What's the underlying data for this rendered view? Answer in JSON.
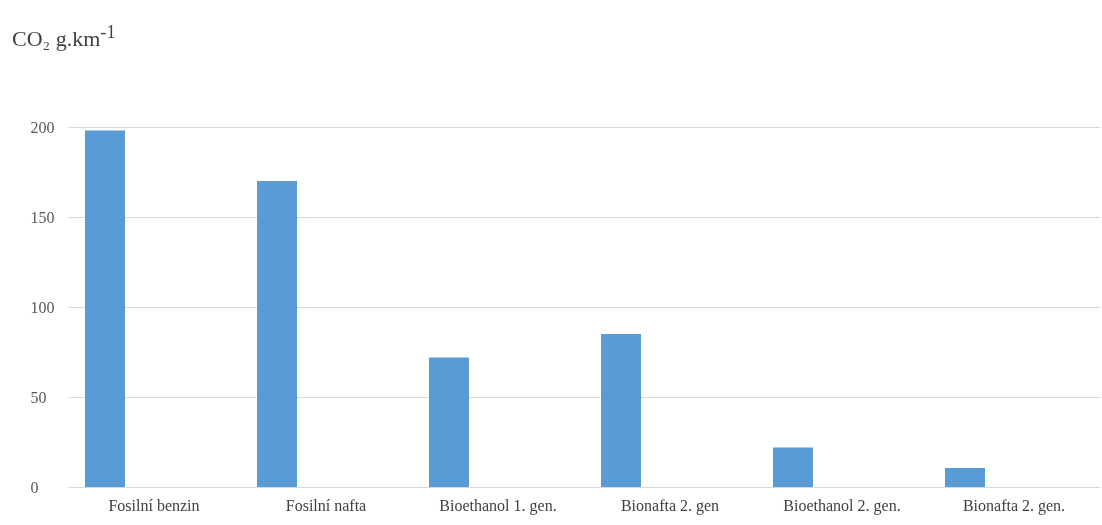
{
  "chart_data": {
    "type": "bar",
    "title": "CO₂ g.km$^{-1}$",
    "categories": [
      "Fosilní benzin",
      "Fosilní nafta",
      "Bioethanol 1. gen.",
      "Bionafta 2. gen",
      "Bioethanol 2. gen.",
      "Bionafta 2. gen."
    ],
    "values": [
      198,
      170,
      72,
      85,
      22,
      10.5
    ],
    "color": "#5b9bd5",
    "ylim": [
      0,
      200
    ],
    "yticks": [
      0,
      50,
      100,
      150,
      200
    ],
    "grid": "y"
  }
}
